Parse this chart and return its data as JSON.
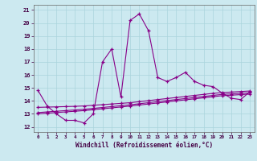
{
  "title": "",
  "xlabel": "Windchill (Refroidissement éolien,°C)",
  "ylabel": "",
  "bg_color": "#cce9f0",
  "line_color": "#880088",
  "grid_color": "#aad4dc",
  "x_ticks": [
    0,
    1,
    2,
    3,
    4,
    5,
    6,
    7,
    8,
    9,
    10,
    11,
    12,
    13,
    14,
    15,
    16,
    17,
    18,
    19,
    20,
    21,
    22,
    23
  ],
  "y_ticks": [
    12,
    13,
    14,
    15,
    16,
    17,
    18,
    19,
    20,
    21
  ],
  "ylim": [
    11.6,
    21.4
  ],
  "xlim": [
    -0.5,
    23.5
  ],
  "series": [
    [
      14.8,
      13.6,
      13.0,
      12.5,
      12.5,
      12.3,
      13.0,
      17.0,
      18.0,
      14.3,
      20.2,
      20.7,
      19.4,
      15.8,
      15.5,
      15.8,
      16.2,
      15.5,
      15.2,
      15.1,
      14.6,
      14.2,
      14.1,
      14.7
    ],
    [
      13.0,
      13.05,
      13.1,
      13.15,
      13.2,
      13.25,
      13.32,
      13.39,
      13.46,
      13.53,
      13.6,
      13.68,
      13.76,
      13.84,
      13.92,
      14.0,
      14.08,
      14.16,
      14.24,
      14.32,
      14.4,
      14.44,
      14.48,
      14.52
    ],
    [
      13.1,
      13.15,
      13.2,
      13.25,
      13.3,
      13.35,
      13.42,
      13.49,
      13.56,
      13.63,
      13.7,
      13.78,
      13.86,
      13.94,
      14.02,
      14.1,
      14.18,
      14.26,
      14.34,
      14.42,
      14.5,
      14.54,
      14.58,
      14.62
    ],
    [
      13.5,
      13.52,
      13.54,
      13.56,
      13.58,
      13.61,
      13.66,
      13.71,
      13.76,
      13.81,
      13.86,
      13.94,
      14.02,
      14.1,
      14.18,
      14.26,
      14.34,
      14.42,
      14.5,
      14.58,
      14.64,
      14.68,
      14.72,
      14.76
    ]
  ]
}
